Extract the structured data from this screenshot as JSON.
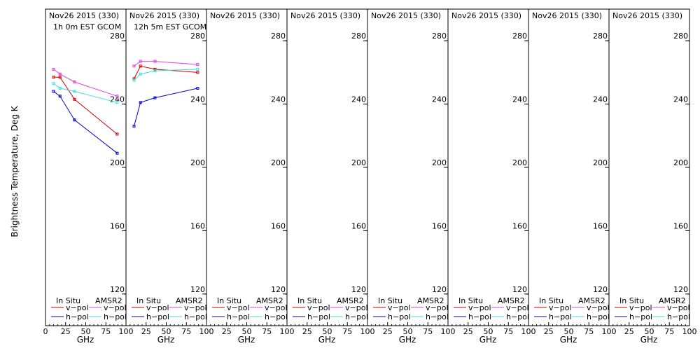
{
  "ylabel": "Brightness Temperature, Deg K",
  "xlabel": "GHz",
  "legend": {
    "insitu_header": "In Situ",
    "amsr2_header": "AMSR2",
    "vpol": "v−pol",
    "hpol": "h−pol"
  },
  "colors": {
    "insitu_v": "#cc0000",
    "insitu_h": "#0000cc",
    "amsr2_v": "#e040e0",
    "amsr2_h": "#40e0e0"
  },
  "chart_data": {
    "type": "line",
    "xlim": [
      0,
      100
    ],
    "ylim": [
      100,
      300
    ],
    "xticks": [
      0,
      25,
      50,
      75,
      100
    ],
    "yticks": [
      120,
      160,
      200,
      240,
      280
    ],
    "panels": [
      {
        "title": "Nov26 2015 (330)",
        "subtitle": "1h 0m EST GCOM",
        "series": [
          {
            "name": "In Situ v-pol",
            "x": [
              10,
              18,
              36,
              89
            ],
            "y": [
              257,
              257,
              243,
              221
            ]
          },
          {
            "name": "In Situ h-pol",
            "x": [
              10,
              18,
              36,
              89
            ],
            "y": [
              248,
              245,
              230,
              209
            ]
          },
          {
            "name": "AMSR2 v-pol",
            "x": [
              10,
              18,
              36,
              89
            ],
            "y": [
              262,
              259,
              254,
              245
            ]
          },
          {
            "name": "AMSR2 h-pol",
            "x": [
              10,
              18,
              36,
              89
            ],
            "y": [
              253,
              250,
              248,
              241
            ]
          }
        ]
      },
      {
        "title": "Nov26 2015 (330)",
        "subtitle": "12h 5m EST GCOM",
        "series": [
          {
            "name": "In Situ v-pol",
            "x": [
              10,
              18,
              36,
              89
            ],
            "y": [
              256,
              264,
              262,
              260
            ]
          },
          {
            "name": "In Situ h-pol",
            "x": [
              10,
              18,
              36,
              89
            ],
            "y": [
              226,
              241,
              244,
              250
            ]
          },
          {
            "name": "AMSR2 v-pol",
            "x": [
              10,
              18,
              36,
              89
            ],
            "y": [
              264,
              267,
              267,
              265
            ]
          },
          {
            "name": "AMSR2 h-pol",
            "x": [
              10,
              18,
              36,
              89
            ],
            "y": [
              255,
              259,
              261,
              262
            ]
          }
        ]
      },
      {
        "title": "Nov26 2015 (330)",
        "subtitle": "",
        "series": []
      },
      {
        "title": "Nov26 2015 (330)",
        "subtitle": "",
        "series": []
      },
      {
        "title": "Nov26 2015 (330)",
        "subtitle": "",
        "series": []
      },
      {
        "title": "Nov26 2015 (330)",
        "subtitle": "",
        "series": []
      },
      {
        "title": "Nov26 2015 (330)",
        "subtitle": "",
        "series": []
      },
      {
        "title": "Nov26 2015 (330)",
        "subtitle": "",
        "series": []
      }
    ]
  }
}
